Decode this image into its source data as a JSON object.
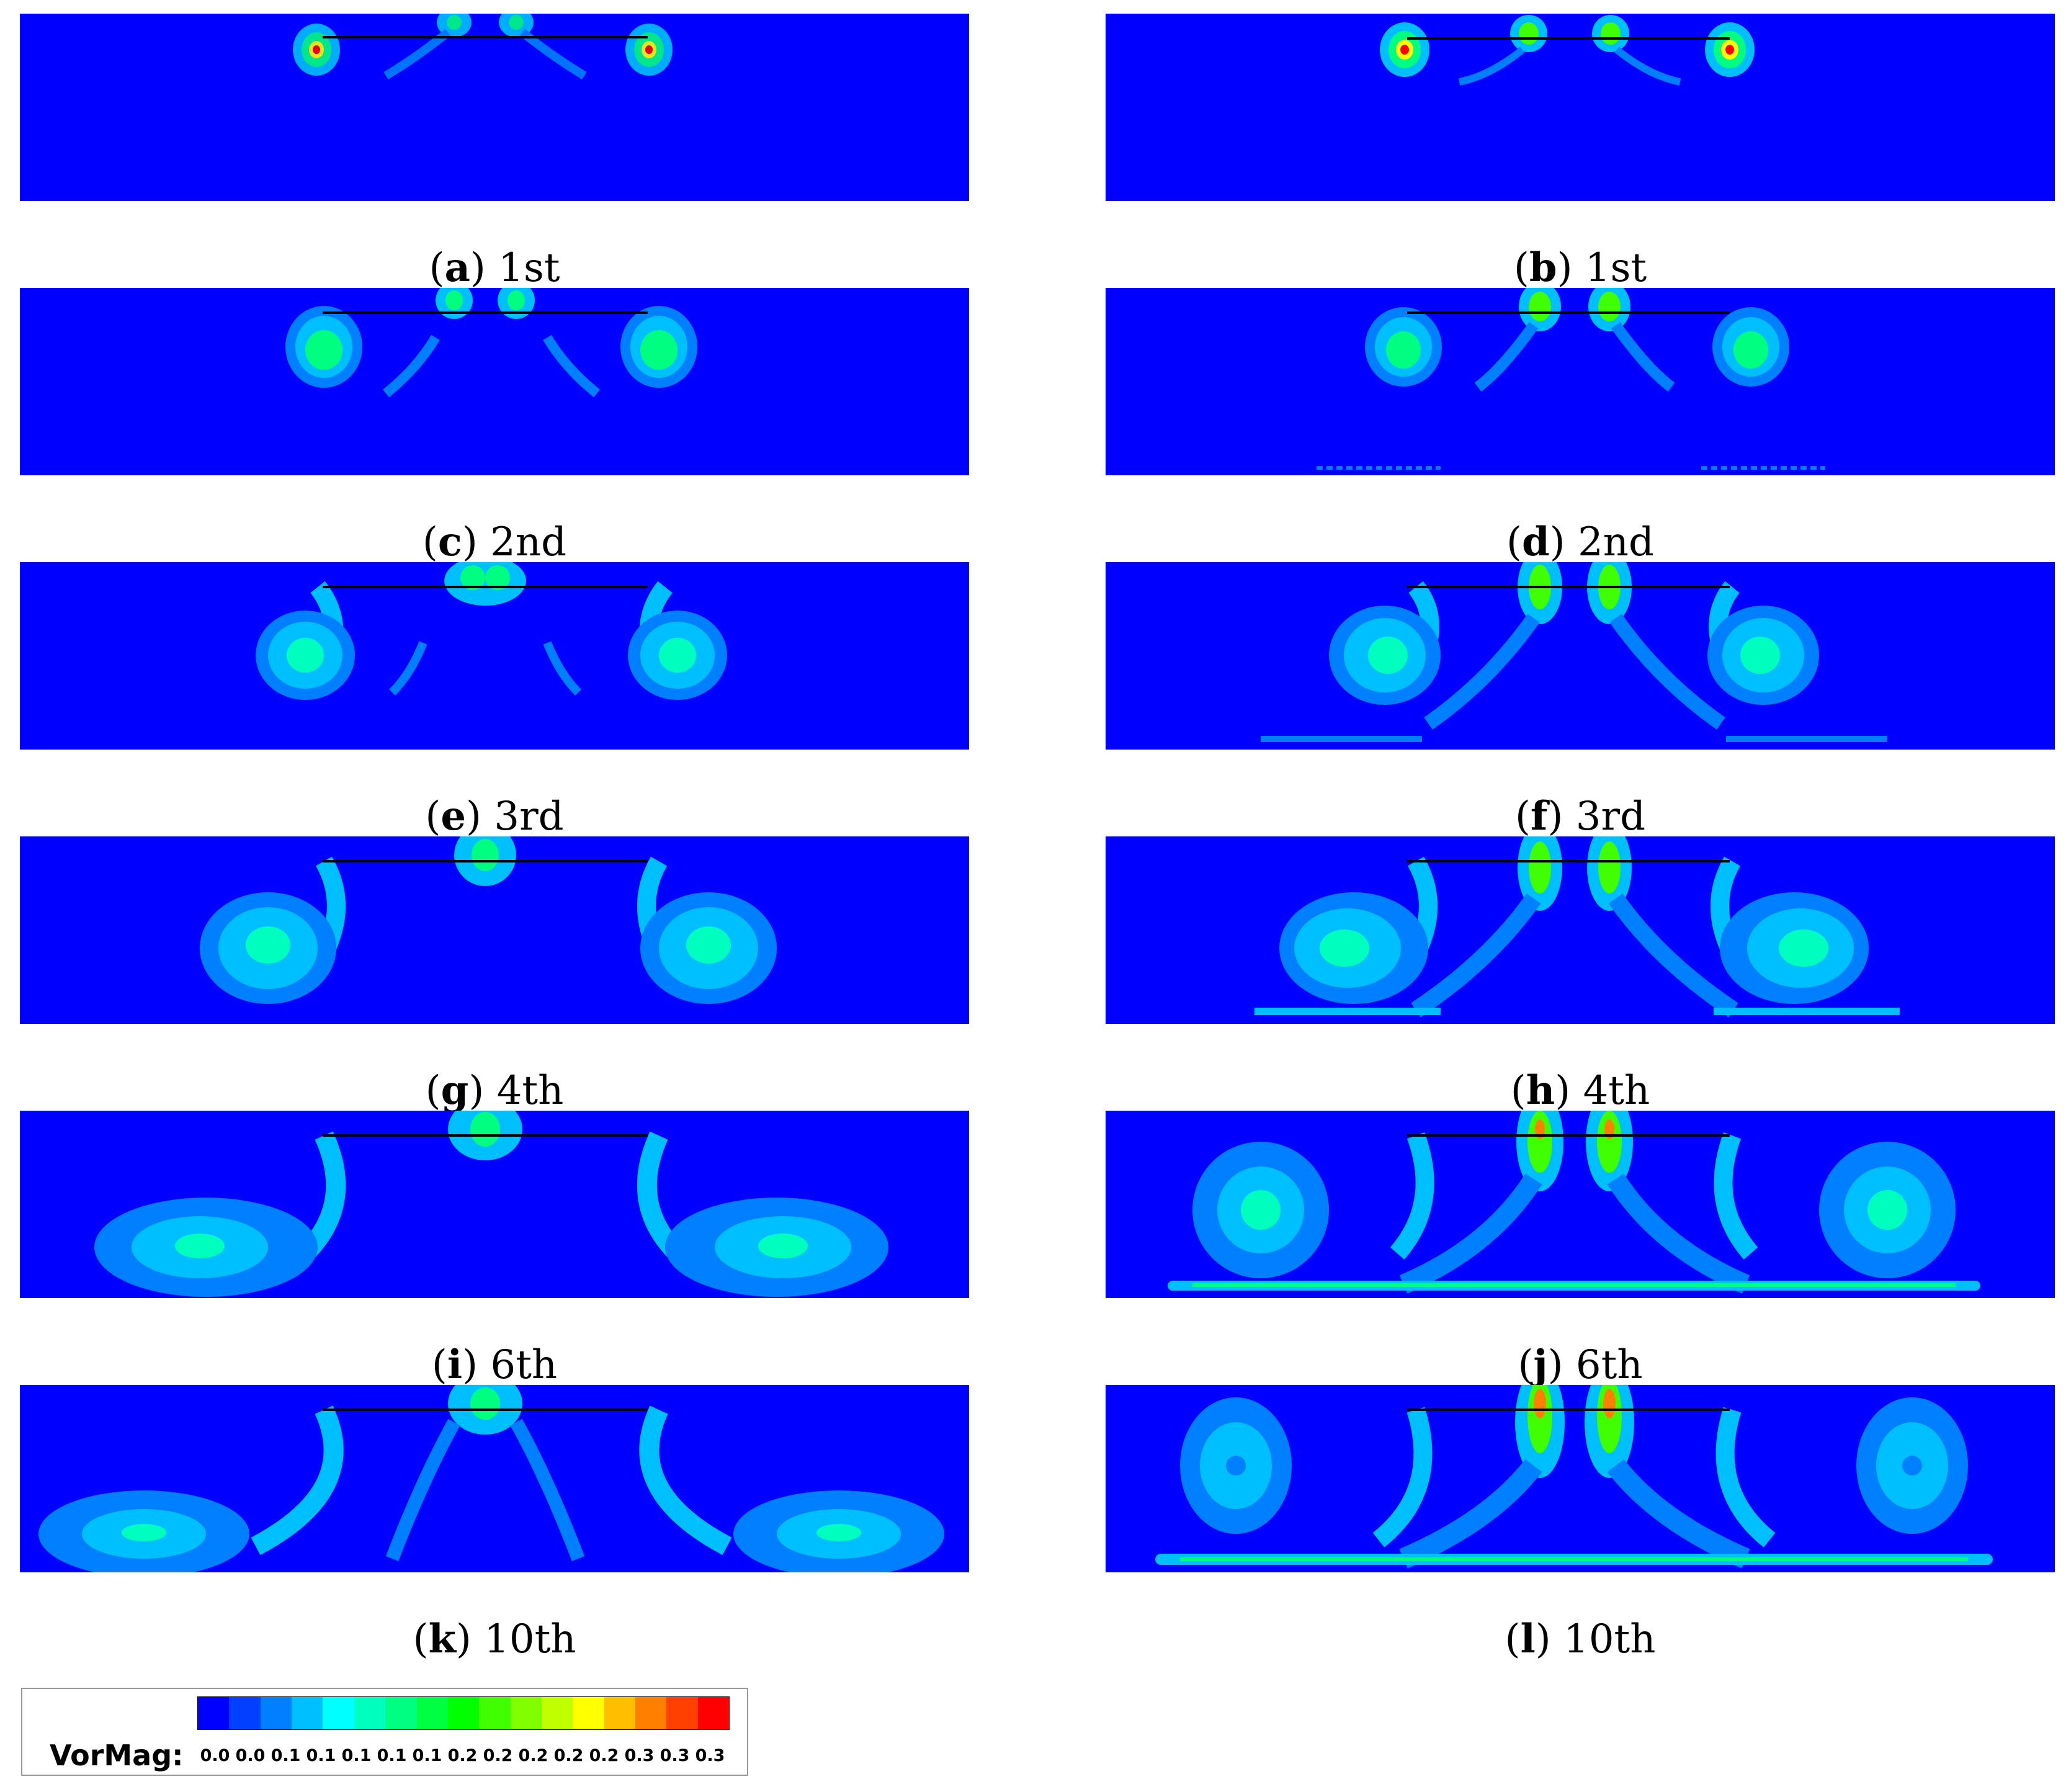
{
  "panels": [
    {
      "letter": "a",
      "label": "1st"
    },
    {
      "letter": "b",
      "label": "1st"
    },
    {
      "letter": "c",
      "label": "2nd"
    },
    {
      "letter": "d",
      "label": "2nd"
    },
    {
      "letter": "e",
      "label": "3rd"
    },
    {
      "letter": "f",
      "label": "3rd"
    },
    {
      "letter": "g",
      "label": "4th"
    },
    {
      "letter": "h",
      "label": "4th"
    },
    {
      "letter": "i",
      "label": "6th"
    },
    {
      "letter": "j",
      "label": "6th"
    },
    {
      "letter": "k",
      "label": "10th"
    },
    {
      "letter": "l",
      "label": "10th"
    }
  ],
  "legend": {
    "title": "VorMag:",
    "ticks": [
      "0.0",
      "0.0",
      "0.1",
      "0.1",
      "0.1",
      "0.1",
      "0.1",
      "0.2",
      "0.2",
      "0.2",
      "0.2",
      "0.2",
      "0.3",
      "0.3",
      "0.3"
    ],
    "colors": [
      "#0000ff",
      "#0040ff",
      "#0080ff",
      "#00bfff",
      "#00ffff",
      "#00ffbf",
      "#00ff80",
      "#00ff40",
      "#00ff00",
      "#40ff00",
      "#80ff00",
      "#bfff00",
      "#ffff00",
      "#ffbf00",
      "#ff8000",
      "#ff4000",
      "#ff0000"
    ]
  }
}
